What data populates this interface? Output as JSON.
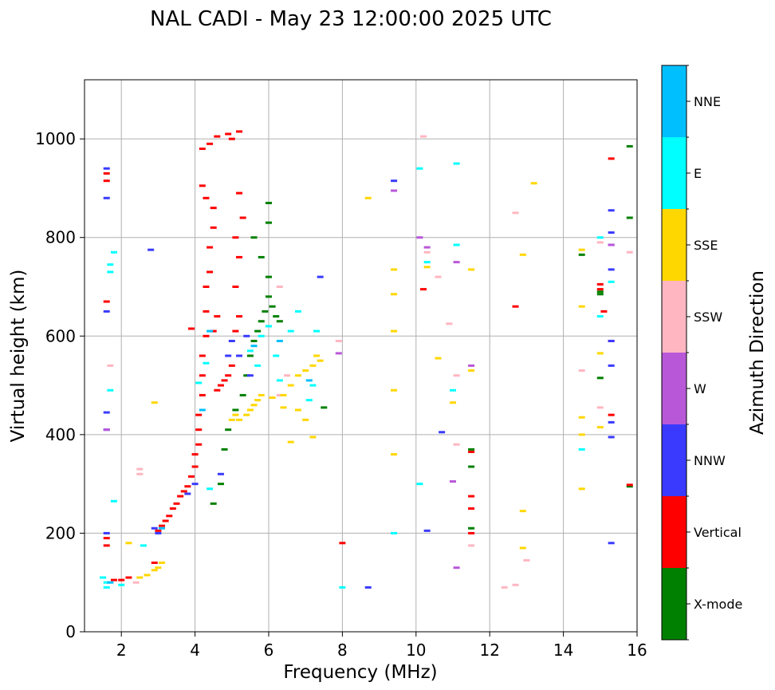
{
  "chart_data": {
    "type": "scatter",
    "title": "NAL CADI - May 23 12:00:00 2025 UTC",
    "xlabel": "Frequency (MHz)",
    "ylabel": "Virtual height (km)",
    "xlim": [
      1.0,
      16.0
    ],
    "ylim": [
      0,
      1120
    ],
    "x_ticks": [
      2,
      4,
      6,
      8,
      10,
      12,
      14,
      16
    ],
    "y_ticks": [
      0,
      200,
      400,
      600,
      800,
      1000
    ],
    "x_tick_labels": [
      "2",
      "4",
      "6",
      "8",
      "10",
      "12",
      "14",
      "16"
    ],
    "y_tick_labels": [
      "0",
      "200",
      "400",
      "600",
      "800",
      "1000"
    ],
    "grid": true,
    "colorbar": {
      "label": "Azimuth Direction",
      "categories": [
        {
          "name": "X-mode",
          "color": "#008000"
        },
        {
          "name": "Vertical",
          "color": "#ff0000"
        },
        {
          "name": "NNW",
          "color": "#3a3aff"
        },
        {
          "name": "W",
          "color": "#b957d9"
        },
        {
          "name": "SSW",
          "color": "#ffb6c1"
        },
        {
          "name": "SSE",
          "color": "#ffd700"
        },
        {
          "name": "E",
          "color": "#00ffff"
        },
        {
          "name": "NNE",
          "color": "#00bfff"
        }
      ]
    },
    "series": [
      {
        "name": "X-mode",
        "color": "#008000",
        "points": [
          [
            4.8,
            370
          ],
          [
            4.9,
            410
          ],
          [
            5.1,
            450
          ],
          [
            5.3,
            480
          ],
          [
            5.4,
            520
          ],
          [
            5.5,
            560
          ],
          [
            5.6,
            590
          ],
          [
            5.7,
            610
          ],
          [
            5.8,
            630
          ],
          [
            5.9,
            650
          ],
          [
            6.0,
            680
          ],
          [
            6.0,
            720
          ],
          [
            6.1,
            660
          ],
          [
            6.2,
            640
          ],
          [
            5.6,
            800
          ],
          [
            5.8,
            760
          ],
          [
            6.0,
            830
          ],
          [
            6.0,
            870
          ],
          [
            6.3,
            630
          ],
          [
            7.5,
            455
          ],
          [
            4.5,
            260
          ],
          [
            4.7,
            300
          ],
          [
            11.5,
            370
          ],
          [
            11.5,
            335
          ],
          [
            11.5,
            210
          ],
          [
            15.0,
            690
          ],
          [
            15.0,
            515
          ],
          [
            15.0,
            685
          ],
          [
            14.5,
            765
          ],
          [
            15.8,
            985
          ],
          [
            15.8,
            840
          ],
          [
            15.8,
            295
          ]
        ]
      },
      {
        "name": "Vertical",
        "color": "#ff0000",
        "points": [
          [
            1.6,
            190
          ],
          [
            1.6,
            175
          ],
          [
            1.6,
            670
          ],
          [
            1.6,
            930
          ],
          [
            1.6,
            915
          ],
          [
            1.8,
            105
          ],
          [
            2.0,
            105
          ],
          [
            2.2,
            110
          ],
          [
            2.9,
            140
          ],
          [
            3.0,
            205
          ],
          [
            3.1,
            215
          ],
          [
            3.2,
            225
          ],
          [
            3.3,
            235
          ],
          [
            3.4,
            250
          ],
          [
            3.5,
            260
          ],
          [
            3.6,
            275
          ],
          [
            3.7,
            285
          ],
          [
            3.8,
            295
          ],
          [
            3.9,
            315
          ],
          [
            4.0,
            335
          ],
          [
            4.0,
            360
          ],
          [
            4.1,
            380
          ],
          [
            4.1,
            410
          ],
          [
            4.1,
            440
          ],
          [
            4.2,
            480
          ],
          [
            4.2,
            520
          ],
          [
            4.2,
            560
          ],
          [
            4.3,
            600
          ],
          [
            4.3,
            650
          ],
          [
            4.3,
            700
          ],
          [
            4.4,
            730
          ],
          [
            4.4,
            780
          ],
          [
            4.5,
            820
          ],
          [
            4.5,
            860
          ],
          [
            4.2,
            905
          ],
          [
            4.3,
            880
          ],
          [
            4.2,
            980
          ],
          [
            4.6,
            490
          ],
          [
            4.7,
            500
          ],
          [
            4.8,
            510
          ],
          [
            4.9,
            520
          ],
          [
            5.0,
            540
          ],
          [
            4.5,
            610
          ],
          [
            4.6,
            640
          ],
          [
            5.1,
            610
          ],
          [
            5.2,
            640
          ],
          [
            5.1,
            700
          ],
          [
            5.2,
            760
          ],
          [
            5.1,
            800
          ],
          [
            5.3,
            840
          ],
          [
            5.2,
            890
          ],
          [
            4.9,
            1010
          ],
          [
            5.0,
            1000
          ],
          [
            5.2,
            1015
          ],
          [
            4.4,
            990
          ],
          [
            4.6,
            1005
          ],
          [
            3.9,
            615
          ],
          [
            8.0,
            180
          ],
          [
            10.2,
            695
          ],
          [
            11.5,
            275
          ],
          [
            11.5,
            250
          ],
          [
            11.5,
            365
          ],
          [
            11.5,
            200
          ],
          [
            12.7,
            660
          ],
          [
            15.0,
            705
          ],
          [
            15.0,
            695
          ],
          [
            15.1,
            650
          ],
          [
            15.3,
            960
          ],
          [
            15.3,
            590
          ],
          [
            15.3,
            440
          ],
          [
            15.8,
            298
          ]
        ]
      },
      {
        "name": "NNW",
        "color": "#3a3aff",
        "points": [
          [
            1.6,
            940
          ],
          [
            1.6,
            880
          ],
          [
            1.6,
            650
          ],
          [
            1.6,
            445
          ],
          [
            1.6,
            410
          ],
          [
            1.6,
            200
          ],
          [
            2.9,
            210
          ],
          [
            3.0,
            200
          ],
          [
            3.8,
            280
          ],
          [
            4.0,
            300
          ],
          [
            4.7,
            320
          ],
          [
            4.9,
            560
          ],
          [
            5.0,
            590
          ],
          [
            5.2,
            560
          ],
          [
            5.4,
            600
          ],
          [
            5.5,
            520
          ],
          [
            7.4,
            720
          ],
          [
            8.7,
            90
          ],
          [
            9.4,
            915
          ],
          [
            10.3,
            205
          ],
          [
            10.7,
            405
          ],
          [
            15.3,
            590
          ],
          [
            15.3,
            540
          ],
          [
            15.3,
            425
          ],
          [
            15.3,
            395
          ],
          [
            15.3,
            180
          ],
          [
            15.3,
            855
          ],
          [
            15.3,
            810
          ],
          [
            15.3,
            785
          ],
          [
            15.3,
            735
          ],
          [
            2.8,
            775
          ]
        ]
      },
      {
        "name": "W",
        "color": "#b957d9",
        "points": [
          [
            9.4,
            895
          ],
          [
            10.1,
            800
          ],
          [
            10.3,
            780
          ],
          [
            11.0,
            305
          ],
          [
            11.1,
            130
          ],
          [
            11.1,
            750
          ],
          [
            11.5,
            540
          ],
          [
            15.3,
            785
          ],
          [
            7.9,
            565
          ],
          [
            1.6,
            410
          ]
        ]
      },
      {
        "name": "SSW",
        "color": "#ffb6c1",
        "points": [
          [
            2.5,
            330
          ],
          [
            2.5,
            320
          ],
          [
            2.4,
            100
          ],
          [
            6.3,
            480
          ],
          [
            6.3,
            700
          ],
          [
            6.5,
            520
          ],
          [
            7.9,
            590
          ],
          [
            10.2,
            1005
          ],
          [
            10.3,
            770
          ],
          [
            10.6,
            720
          ],
          [
            10.9,
            625
          ],
          [
            11.1,
            380
          ],
          [
            11.1,
            520
          ],
          [
            11.5,
            175
          ],
          [
            12.4,
            90
          ],
          [
            12.7,
            95
          ],
          [
            12.7,
            850
          ],
          [
            13.0,
            145
          ],
          [
            14.5,
            530
          ],
          [
            15.0,
            455
          ],
          [
            15.0,
            790
          ],
          [
            15.8,
            770
          ],
          [
            1.7,
            540
          ]
        ]
      },
      {
        "name": "SSE",
        "color": "#ffd700",
        "points": [
          [
            2.2,
            180
          ],
          [
            2.5,
            110
          ],
          [
            2.7,
            115
          ],
          [
            2.9,
            125
          ],
          [
            3.0,
            130
          ],
          [
            3.1,
            140
          ],
          [
            5.0,
            430
          ],
          [
            5.1,
            440
          ],
          [
            5.2,
            430
          ],
          [
            5.4,
            440
          ],
          [
            5.5,
            450
          ],
          [
            5.6,
            460
          ],
          [
            5.7,
            470
          ],
          [
            5.8,
            480
          ],
          [
            6.1,
            475
          ],
          [
            6.4,
            480
          ],
          [
            6.6,
            500
          ],
          [
            6.8,
            520
          ],
          [
            7.0,
            530
          ],
          [
            7.2,
            540
          ],
          [
            7.3,
            560
          ],
          [
            7.4,
            550
          ],
          [
            6.8,
            450
          ],
          [
            7.0,
            430
          ],
          [
            6.4,
            455
          ],
          [
            6.6,
            385
          ],
          [
            7.2,
            395
          ],
          [
            2.9,
            465
          ],
          [
            8.7,
            880
          ],
          [
            9.4,
            735
          ],
          [
            9.4,
            610
          ],
          [
            9.4,
            490
          ],
          [
            9.4,
            360
          ],
          [
            9.4,
            685
          ],
          [
            10.3,
            740
          ],
          [
            10.6,
            555
          ],
          [
            11.0,
            465
          ],
          [
            11.5,
            530
          ],
          [
            11.5,
            735
          ],
          [
            12.9,
            765
          ],
          [
            12.9,
            245
          ],
          [
            12.9,
            170
          ],
          [
            13.2,
            910
          ],
          [
            14.5,
            660
          ],
          [
            14.5,
            435
          ],
          [
            14.5,
            400
          ],
          [
            14.5,
            290
          ],
          [
            14.5,
            775
          ],
          [
            15.0,
            565
          ],
          [
            15.0,
            415
          ]
        ]
      },
      {
        "name": "E",
        "color": "#00ffff",
        "points": [
          [
            1.5,
            110
          ],
          [
            1.6,
            100
          ],
          [
            1.6,
            90
          ],
          [
            1.7,
            730
          ],
          [
            1.7,
            745
          ],
          [
            1.8,
            770
          ],
          [
            1.8,
            265
          ],
          [
            1.7,
            490
          ],
          [
            2.0,
            95
          ],
          [
            2.6,
            175
          ],
          [
            4.1,
            505
          ],
          [
            4.3,
            545
          ],
          [
            4.4,
            290
          ],
          [
            5.5,
            570
          ],
          [
            5.7,
            540
          ],
          [
            5.8,
            600
          ],
          [
            6.0,
            620
          ],
          [
            6.2,
            560
          ],
          [
            6.3,
            510
          ],
          [
            6.6,
            610
          ],
          [
            6.8,
            650
          ],
          [
            7.1,
            470
          ],
          [
            7.2,
            500
          ],
          [
            7.3,
            610
          ],
          [
            8.0,
            90
          ],
          [
            9.4,
            200
          ],
          [
            10.1,
            940
          ],
          [
            10.1,
            300
          ],
          [
            10.3,
            750
          ],
          [
            11.0,
            490
          ],
          [
            11.1,
            950
          ],
          [
            11.1,
            785
          ],
          [
            14.5,
            370
          ],
          [
            15.0,
            800
          ],
          [
            15.0,
            640
          ],
          [
            15.3,
            710
          ]
        ]
      },
      {
        "name": "NNE",
        "color": "#00bfff",
        "points": [
          [
            1.7,
            100
          ],
          [
            3.1,
            210
          ],
          [
            4.2,
            450
          ],
          [
            4.4,
            610
          ],
          [
            5.6,
            580
          ],
          [
            6.3,
            590
          ],
          [
            7.1,
            510
          ]
        ]
      }
    ]
  }
}
